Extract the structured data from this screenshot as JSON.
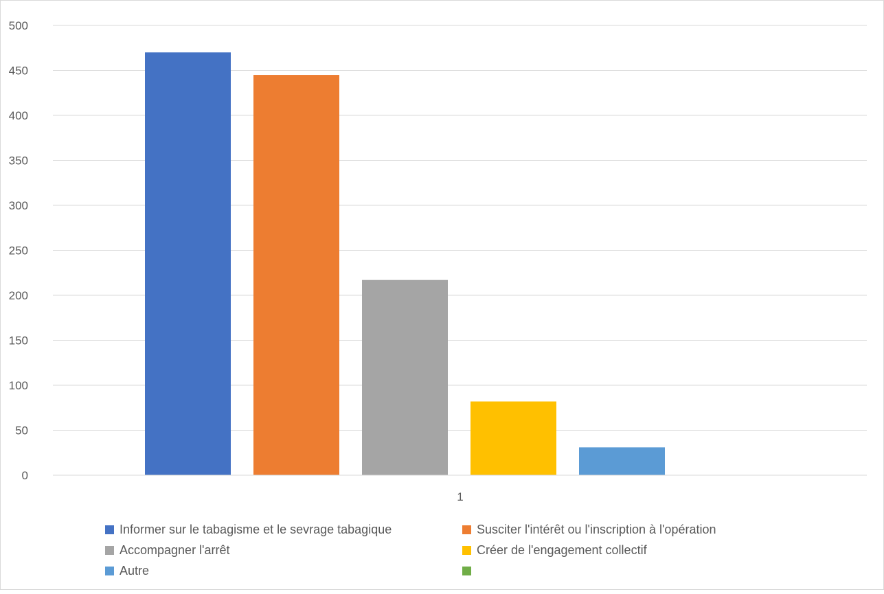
{
  "chart_data": {
    "type": "bar",
    "categories": [
      "1"
    ],
    "series": [
      {
        "name": "Informer sur le tabagisme et le sevrage tabagique",
        "values": [
          470
        ],
        "color": "#4472C4"
      },
      {
        "name": "Susciter l'intérêt ou l'inscription à l'opération",
        "values": [
          445
        ],
        "color": "#ED7D31"
      },
      {
        "name": "Accompagner l'arrêt",
        "values": [
          217
        ],
        "color": "#A5A5A5"
      },
      {
        "name": "Créer de l'engagement collectif",
        "values": [
          82
        ],
        "color": "#FFC000"
      },
      {
        "name": "Autre",
        "values": [
          31
        ],
        "color": "#5B9BD5"
      },
      {
        "name": "",
        "values": [
          0
        ],
        "color": "#70AD47"
      }
    ],
    "y_ticks": [
      "0",
      "50",
      "100",
      "150",
      "200",
      "250",
      "300",
      "350",
      "400",
      "450",
      "500"
    ],
    "ylim": [
      0,
      500
    ],
    "grid": true,
    "legend_position": "bottom"
  }
}
